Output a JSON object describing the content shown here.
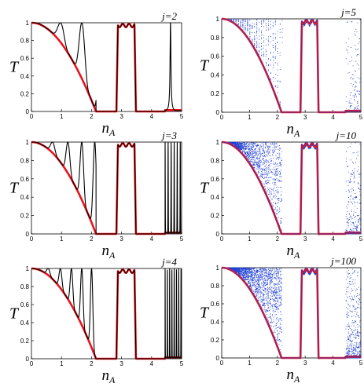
{
  "chart_data": [
    {
      "type": "line",
      "label": "j=2",
      "j": 2,
      "style": "lines",
      "ylabel": "T",
      "xlabel": "n",
      "xlabel_sub": "A",
      "xlim": [
        0,
        5
      ],
      "ylim": [
        0,
        1
      ],
      "xticks": [
        "0",
        "1",
        "2",
        "3",
        "4",
        "5"
      ],
      "yticks": [
        "0",
        "0.2",
        "0.4",
        "0.6",
        "0.8",
        "1"
      ],
      "series": [
        {
          "role": "calculated",
          "color": "#000000"
        },
        {
          "role": "envelope",
          "color": "#e8141c"
        }
      ]
    },
    {
      "type": "scatter",
      "label": "j=5",
      "j": 5,
      "style": "dots",
      "ylabel": "T",
      "xlabel": "n",
      "xlabel_sub": "A",
      "xlim": [
        0,
        5
      ],
      "ylim": [
        0,
        1
      ],
      "xticks": [
        "0",
        "1",
        "2",
        "3",
        "4",
        "5"
      ],
      "yticks": [
        "0",
        "0.2",
        "0.4",
        "0.6",
        "0.8",
        "1"
      ],
      "series": [
        {
          "role": "calculated",
          "color": "#1f3fd6"
        },
        {
          "role": "envelope",
          "color": "#e8141c"
        }
      ]
    },
    {
      "type": "line",
      "label": "j=3",
      "j": 3,
      "style": "lines",
      "ylabel": "T",
      "xlabel": "n",
      "xlabel_sub": "A",
      "xlim": [
        0,
        5
      ],
      "ylim": [
        0,
        1
      ],
      "xticks": [
        "0",
        "1",
        "2",
        "3",
        "4",
        "5"
      ],
      "yticks": [
        "0",
        "0.2",
        "0.4",
        "0.6",
        "0.8",
        "1"
      ],
      "series": [
        {
          "role": "calculated",
          "color": "#000000"
        },
        {
          "role": "envelope",
          "color": "#e8141c"
        }
      ]
    },
    {
      "type": "scatter",
      "label": "j=10",
      "j": 10,
      "style": "dots",
      "ylabel": "T",
      "xlabel": "n",
      "xlabel_sub": "A",
      "xlim": [
        0,
        5
      ],
      "ylim": [
        0,
        1
      ],
      "xticks": [
        "0",
        "1",
        "2",
        "3",
        "4",
        "5"
      ],
      "yticks": [
        "0",
        "0.2",
        "0.4",
        "0.6",
        "0.8",
        "1"
      ],
      "series": [
        {
          "role": "calculated",
          "color": "#1f3fd6"
        },
        {
          "role": "envelope",
          "color": "#e8141c"
        }
      ]
    },
    {
      "type": "line",
      "label": "j=4",
      "j": 4,
      "style": "lines",
      "ylabel": "T",
      "xlabel": "n",
      "xlabel_sub": "A",
      "xlim": [
        0,
        5
      ],
      "ylim": [
        0,
        1
      ],
      "xticks": [
        "0",
        "1",
        "2",
        "3",
        "4",
        "5"
      ],
      "yticks": [
        "0",
        "0.2",
        "0.4",
        "0.6",
        "0.8",
        "1"
      ],
      "series": [
        {
          "role": "calculated",
          "color": "#000000"
        },
        {
          "role": "envelope",
          "color": "#e8141c"
        }
      ]
    },
    {
      "type": "scatter",
      "label": "j=100",
      "j": 100,
      "style": "dots",
      "ylabel": "T",
      "xlabel": "n",
      "xlabel_sub": "A",
      "xlim": [
        0,
        5
      ],
      "ylim": [
        0,
        1
      ],
      "xticks": [
        "0",
        "1",
        "2",
        "3",
        "4",
        "5"
      ],
      "yticks": [
        "0",
        "0.2",
        "0.4",
        "0.6",
        "0.8",
        "1"
      ],
      "series": [
        {
          "role": "calculated",
          "color": "#1f3fd6"
        },
        {
          "role": "envelope",
          "color": "#e8141c"
        }
      ]
    }
  ]
}
